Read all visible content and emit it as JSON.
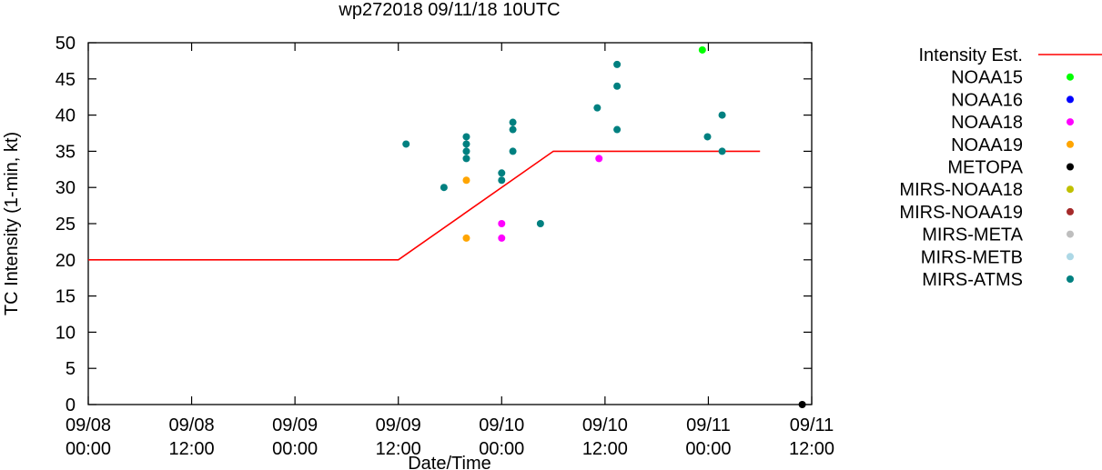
{
  "chart_data": {
    "type": "scatter",
    "title": "wp272018 09/11/18 10UTC",
    "xlabel": "Date/Time",
    "ylabel": "TC Intensity (1-min, kt)",
    "ylim": [
      0,
      50
    ],
    "yticks": [
      "0",
      "5",
      "10",
      "15",
      "20",
      "25",
      "30",
      "35",
      "40",
      "45",
      "50"
    ],
    "xlim_hours": [
      0,
      84
    ],
    "xticks": [
      {
        "hour": 0,
        "date": "09/08",
        "time": "00:00"
      },
      {
        "hour": 12,
        "date": "09/08",
        "time": "12:00"
      },
      {
        "hour": 24,
        "date": "09/09",
        "time": "00:00"
      },
      {
        "hour": 36,
        "date": "09/09",
        "time": "12:00"
      },
      {
        "hour": 48,
        "date": "09/10",
        "time": "00:00"
      },
      {
        "hour": 60,
        "date": "09/10",
        "time": "12:00"
      },
      {
        "hour": 72,
        "date": "09/11",
        "time": "00:00"
      },
      {
        "hour": 84,
        "date": "09/11",
        "time": "12:00"
      }
    ],
    "grid": false,
    "legend_position": "right",
    "series": [
      {
        "name": "Intensity Est.",
        "kind": "line",
        "color": "#ff0000",
        "points": [
          [
            0,
            20
          ],
          [
            36,
            20
          ],
          [
            54,
            35
          ],
          [
            78,
            35
          ]
        ]
      },
      {
        "name": "NOAA15",
        "kind": "points",
        "color": "#00ff00",
        "points": [
          [
            71.3,
            49
          ]
        ]
      },
      {
        "name": "NOAA16",
        "kind": "points",
        "color": "#0000ff",
        "points": []
      },
      {
        "name": "NOAA18",
        "kind": "points",
        "color": "#ff00ff",
        "points": [
          [
            48,
            25
          ],
          [
            48,
            23
          ],
          [
            59.3,
            34
          ]
        ]
      },
      {
        "name": "NOAA19",
        "kind": "points",
        "color": "#ffa500",
        "points": [
          [
            43.9,
            31
          ],
          [
            43.9,
            23
          ]
        ]
      },
      {
        "name": "METOPA",
        "kind": "points",
        "color": "#000000",
        "points": [
          [
            82.9,
            0
          ]
        ]
      },
      {
        "name": "MIRS-NOAA18",
        "kind": "points",
        "color": "#c0c000",
        "points": []
      },
      {
        "name": "MIRS-NOAA19",
        "kind": "points",
        "color": "#a52a2a",
        "points": []
      },
      {
        "name": "MIRS-META",
        "kind": "points",
        "color": "#bebebe",
        "points": []
      },
      {
        "name": "MIRS-METB",
        "kind": "points",
        "color": "#add8e6",
        "points": []
      },
      {
        "name": "MIRS-ATMS",
        "kind": "points",
        "color": "#008080",
        "points": [
          [
            36.9,
            36
          ],
          [
            41.3,
            30
          ],
          [
            43.9,
            37
          ],
          [
            43.9,
            36
          ],
          [
            43.9,
            35
          ],
          [
            43.9,
            34
          ],
          [
            48,
            32
          ],
          [
            48,
            31
          ],
          [
            49.3,
            39
          ],
          [
            49.3,
            38
          ],
          [
            49.3,
            35
          ],
          [
            52.5,
            25
          ],
          [
            59.1,
            41
          ],
          [
            61.4,
            47
          ],
          [
            61.4,
            44
          ],
          [
            61.4,
            38
          ],
          [
            71.9,
            37
          ],
          [
            73.6,
            40
          ],
          [
            73.6,
            35
          ]
        ]
      }
    ]
  }
}
